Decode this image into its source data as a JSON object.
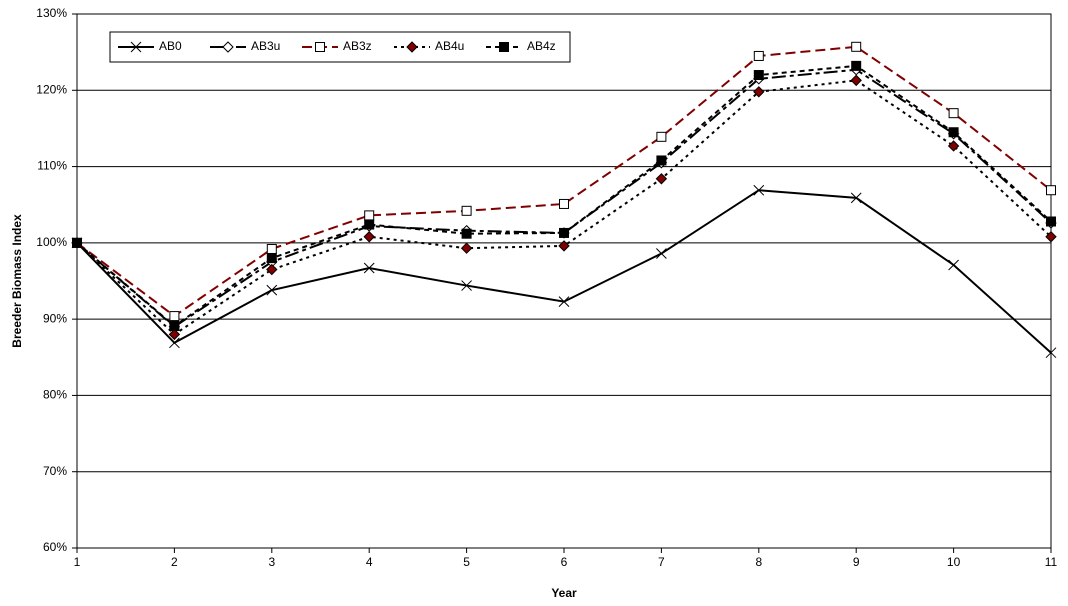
{
  "chart_data": {
    "type": "line",
    "x_label": "Year",
    "y_label": "Breeder Biomass Index",
    "x": [
      1,
      2,
      3,
      4,
      5,
      6,
      7,
      8,
      9,
      10,
      11
    ],
    "xlim": [
      1,
      11
    ],
    "xticks": [
      1,
      2,
      3,
      4,
      5,
      6,
      7,
      8,
      9,
      10,
      11
    ],
    "ylim": [
      60,
      130
    ],
    "yticks": [
      {
        "value": 60,
        "label": "60%"
      },
      {
        "value": 70,
        "label": "70%"
      },
      {
        "value": 80,
        "label": "80%"
      },
      {
        "value": 90,
        "label": "90%"
      },
      {
        "value": 100,
        "label": "100%"
      },
      {
        "value": 110,
        "label": "110%"
      },
      {
        "value": 120,
        "label": "120%"
      },
      {
        "value": 130,
        "label": "130%"
      }
    ],
    "grid": true,
    "legend": "upper left",
    "series": [
      {
        "name": "AB0",
        "color": "#000000",
        "values": [
          100,
          86.9,
          93.8,
          96.7,
          94.4,
          92.3,
          98.6,
          106.9,
          105.9,
          97.1,
          85.6
        ]
      },
      {
        "name": "AB3u",
        "color": "#000000",
        "values": [
          100,
          89.0,
          97.5,
          102.2,
          101.6,
          101.3,
          110.5,
          121.5,
          122.7,
          114.3,
          102.6
        ]
      },
      {
        "name": "AB3z",
        "color": "#800000",
        "values": [
          100,
          90.4,
          99.2,
          103.6,
          104.2,
          105.1,
          113.9,
          124.5,
          125.7,
          117.0,
          106.9
        ]
      },
      {
        "name": "AB4u",
        "color": "#000000",
        "values": [
          100,
          88.0,
          96.5,
          100.8,
          99.3,
          99.6,
          108.4,
          119.8,
          121.3,
          112.7,
          100.8
        ]
      },
      {
        "name": "AB4z",
        "color": "#000000",
        "values": [
          100,
          89.1,
          98.0,
          102.4,
          101.2,
          101.3,
          110.8,
          122.0,
          123.2,
          114.5,
          102.8
        ]
      }
    ]
  }
}
